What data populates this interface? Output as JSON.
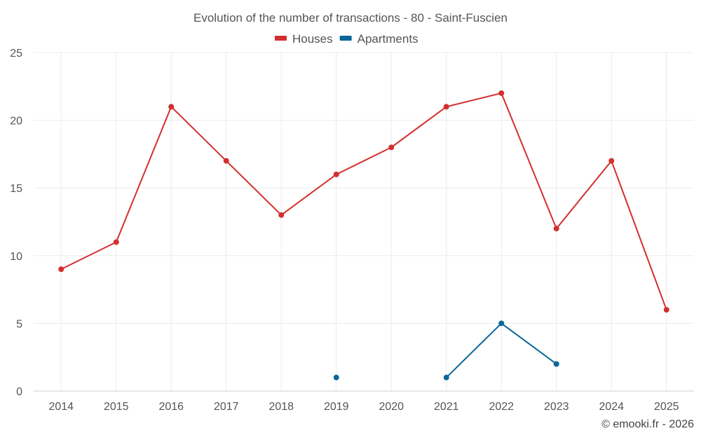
{
  "chart_data": {
    "type": "line",
    "title": "Evolution of the number of transactions - 80 - Saint-Fuscien",
    "categories": [
      "2014",
      "2015",
      "2016",
      "2017",
      "2018",
      "2019",
      "2020",
      "2021",
      "2022",
      "2023",
      "2024",
      "2025"
    ],
    "series": [
      {
        "name": "Houses",
        "color": "#d32f2f",
        "values": [
          9,
          11,
          21,
          17,
          13,
          16,
          18,
          21,
          22,
          12,
          17,
          6
        ]
      },
      {
        "name": "Apartments",
        "color": "#0a6699",
        "values": [
          null,
          null,
          null,
          null,
          null,
          1,
          null,
          1,
          5,
          2,
          null,
          null
        ]
      }
    ],
    "ylim": [
      0,
      25
    ],
    "yticks": [
      0,
      5,
      10,
      15,
      20,
      25
    ],
    "grid": true,
    "legend": "top-center",
    "xlabel": "",
    "ylabel": ""
  },
  "credit": "© emooki.fr - 2026"
}
